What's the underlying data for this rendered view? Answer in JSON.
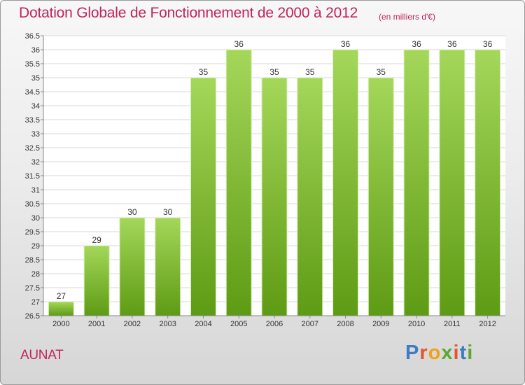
{
  "header": {
    "title": "Dotation Globale de Fonctionnement de 2000 à 2012",
    "unit": "(en milliers d'€)"
  },
  "footer": {
    "place": "AUNAT",
    "logo_text": "Proxiti"
  },
  "colors": {
    "title": "#c0245c",
    "bar_light": "#a4d75a",
    "bar_dark": "#5e9b14",
    "logo": [
      "#3b7cc4",
      "#e5552a",
      "#f0a21b",
      "#5aa832",
      "#e5552a",
      "#3b7cc4",
      "#5aa832"
    ]
  },
  "chart_data": {
    "type": "bar",
    "title": "Dotation Globale de Fonctionnement de 2000 à 2012",
    "subtitle": "(en milliers d'€)",
    "categories": [
      "2000",
      "2001",
      "2002",
      "2003",
      "2004",
      "2005",
      "2006",
      "2007",
      "2008",
      "2009",
      "2010",
      "2011",
      "2012"
    ],
    "values": [
      27,
      29,
      30,
      30,
      35,
      36,
      35,
      35,
      36,
      35,
      36,
      36,
      36
    ],
    "data_labels": [
      "27",
      "29",
      "30",
      "30",
      "35",
      "36",
      "35",
      "35",
      "36",
      "35",
      "36",
      "36",
      "36"
    ],
    "ylim": [
      26.5,
      36.5
    ],
    "yticks": [
      26.5,
      27,
      27.5,
      28,
      28.5,
      29,
      29.5,
      30,
      30.5,
      31,
      31.5,
      32,
      32.5,
      33,
      33.5,
      34,
      34.5,
      35,
      35.5,
      36,
      36.5
    ],
    "ytick_labels": [
      "26.5",
      "27",
      "27.5",
      "28",
      "28.5",
      "29",
      "29.5",
      "30",
      "30.5",
      "31",
      "31.5",
      "32",
      "32.5",
      "33",
      "33.5",
      "34",
      "34.5",
      "35",
      "35.5",
      "36",
      "36.5"
    ],
    "grid": true
  }
}
